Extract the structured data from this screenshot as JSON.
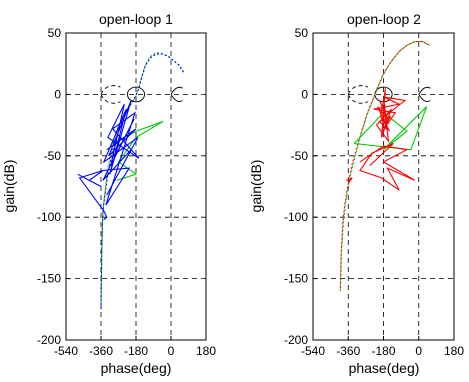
{
  "chart_data": [
    {
      "type": "line",
      "title": "open-loop 1",
      "xlabel": "phase(deg)",
      "ylabel": "gain(dB)",
      "xlim": [
        -540,
        180
      ],
      "ylim": [
        -200,
        50
      ],
      "xticks": [
        "-540",
        "-360",
        "-180",
        "0",
        "180"
      ],
      "yticks": [
        "50",
        "0",
        "-50",
        "-100",
        "-150",
        "-200"
      ],
      "grid": true,
      "series": [
        {
          "color": "#00cc00",
          "style": "dashed",
          "points": [
            [
              -360,
              -170
            ],
            [
              -355,
              -120
            ],
            [
              -350,
              -95
            ],
            [
              -340,
              -80
            ],
            [
              -325,
              -60
            ],
            [
              -300,
              -40
            ],
            [
              -270,
              -25
            ],
            [
              -240,
              -15
            ],
            [
              -210,
              -8
            ],
            [
              -185,
              -3
            ],
            [
              -165,
              5
            ],
            [
              -150,
              15
            ],
            [
              -130,
              25
            ],
            [
              -105,
              31
            ],
            [
              -75,
              34
            ],
            [
              -45,
              33
            ],
            [
              -15,
              31
            ],
            [
              10,
              28
            ],
            [
              40,
              24
            ],
            [
              65,
              18
            ]
          ]
        },
        {
          "color": "#0000ff",
          "style": "dashed",
          "points": [
            [
              -360,
              -175
            ],
            [
              -358,
              -150
            ],
            [
              -356,
              -125
            ],
            [
              -353,
              -108
            ],
            [
              -350,
              -97
            ],
            [
              -345,
              -88
            ],
            [
              -338,
              -80
            ],
            [
              -325,
              -65
            ],
            [
              -310,
              -52
            ],
            [
              -290,
              -40
            ],
            [
              -265,
              -28
            ],
            [
              -240,
              -18
            ],
            [
              -215,
              -10
            ],
            [
              -190,
              -4
            ],
            [
              -170,
              3
            ],
            [
              -150,
              14
            ],
            [
              -130,
              24
            ],
            [
              -105,
              30
            ],
            [
              -75,
              33
            ],
            [
              -45,
              33
            ],
            [
              -15,
              31
            ],
            [
              10,
              28
            ],
            [
              40,
              24
            ],
            [
              65,
              18
            ]
          ]
        },
        {
          "color": "#00cc00",
          "style": "solid",
          "points": [
            [
              -300,
              -40
            ],
            [
              -180,
              -30
            ],
            [
              -40,
              -22
            ],
            [
              -180,
              -35
            ],
            [
              -270,
              -55
            ],
            [
              -180,
              -65
            ],
            [
              -280,
              -70
            ]
          ]
        },
        {
          "color": "#0000ff",
          "style": "solid",
          "points": [
            [
              -330,
              -45
            ],
            [
              -180,
              -28
            ],
            [
              -320,
              -50
            ],
            [
              -205,
              -5
            ],
            [
              -315,
              -65
            ],
            [
              -230,
              -12
            ],
            [
              -345,
              -55
            ],
            [
              -170,
              -35
            ],
            [
              -330,
              -82
            ],
            [
              -205,
              -45
            ],
            [
              -350,
              -70
            ],
            [
              -190,
              -20
            ],
            [
              -310,
              -58
            ],
            [
              -240,
              -8
            ],
            [
              -325,
              -35
            ],
            [
              -165,
              -52
            ],
            [
              -300,
              -28
            ],
            [
              -185,
              -15
            ],
            [
              -335,
              -90
            ],
            [
              -215,
              -60
            ],
            [
              -355,
              -62
            ]
          ]
        },
        {
          "color": "#0000ff",
          "style": "solid",
          "points": [
            [
              -480,
              -65
            ],
            [
              -360,
              -75
            ],
            [
              -420,
              -70
            ],
            [
              -350,
              -62
            ],
            [
              -470,
              -68
            ],
            [
              -345,
              -95
            ],
            [
              -330,
              -100
            ],
            [
              -345,
              -102
            ]
          ]
        }
      ]
    },
    {
      "type": "line",
      "title": "open-loop 2",
      "xlabel": "phase(deg)",
      "ylabel": "gain(dB)",
      "xlim": [
        -540,
        180
      ],
      "ylim": [
        -200,
        50
      ],
      "xticks": [
        "-540",
        "-360",
        "-180",
        "0",
        "180"
      ],
      "yticks": [
        "50",
        "0",
        "-50",
        "-100",
        "-150",
        "-200"
      ],
      "grid": true,
      "series": [
        {
          "color": "#00cc00",
          "style": "dashed",
          "points": [
            [
              -400,
              -160
            ],
            [
              -395,
              -130
            ],
            [
              -385,
              -105
            ],
            [
              -375,
              -90
            ],
            [
              -360,
              -75
            ],
            [
              -340,
              -60
            ],
            [
              -315,
              -45
            ],
            [
              -290,
              -30
            ],
            [
              -260,
              -15
            ],
            [
              -235,
              -5
            ],
            [
              -210,
              5
            ],
            [
              -185,
              15
            ],
            [
              -160,
              22
            ],
            [
              -135,
              28
            ],
            [
              -100,
              35
            ],
            [
              -60,
              40
            ],
            [
              -20,
              43
            ],
            [
              20,
              43
            ],
            [
              55,
              40
            ]
          ]
        },
        {
          "color": "#ff0000",
          "style": "dashed",
          "points": [
            [
              -400,
              -158
            ],
            [
              -396,
              -128
            ],
            [
              -388,
              -104
            ],
            [
              -378,
              -90
            ],
            [
              -362,
              -74
            ],
            [
              -342,
              -58
            ],
            [
              -318,
              -44
            ],
            [
              -292,
              -30
            ],
            [
              -262,
              -15
            ],
            [
              -236,
              -5
            ],
            [
              -212,
              5
            ],
            [
              -186,
              15
            ],
            [
              -160,
              22
            ],
            [
              -135,
              28
            ],
            [
              -100,
              35
            ],
            [
              -60,
              40
            ],
            [
              -20,
              43
            ],
            [
              20,
              43
            ],
            [
              55,
              40
            ]
          ]
        },
        {
          "color": "#00cc00",
          "style": "solid",
          "points": [
            [
              -330,
              -40
            ],
            [
              -180,
              -15
            ],
            [
              -60,
              -30
            ],
            [
              -180,
              -45
            ],
            [
              40,
              -10
            ],
            [
              -40,
              -45
            ],
            [
              -330,
              -40
            ]
          ]
        },
        {
          "color": "#ff0000",
          "style": "solid",
          "points": [
            [
              -200,
              -5
            ],
            [
              -160,
              -20
            ],
            [
              -210,
              -10
            ],
            [
              -150,
              -30
            ],
            [
              -195,
              -18
            ],
            [
              -170,
              5
            ],
            [
              -190,
              -35
            ],
            [
              -140,
              -12
            ],
            [
              -215,
              -25
            ],
            [
              -155,
              -38
            ],
            [
              -175,
              -8
            ],
            [
              -165,
              -28
            ],
            [
              -200,
              -22
            ],
            [
              -145,
              -18
            ],
            [
              -185,
              -30
            ],
            [
              -120,
              -15
            ],
            [
              -230,
              -12
            ],
            [
              -100,
              -8
            ],
            [
              -180,
              -2
            ],
            [
              -70,
              -5
            ],
            [
              -190,
              -20
            ]
          ]
        },
        {
          "color": "#ff0000",
          "style": "solid",
          "points": [
            [
              -300,
              -55
            ],
            [
              -180,
              -42
            ],
            [
              -60,
              -45
            ],
            [
              -180,
              -55
            ],
            [
              -20,
              -70
            ],
            [
              -160,
              -60
            ],
            [
              -100,
              -78
            ],
            [
              -190,
              -68
            ],
            [
              -300,
              -62
            ],
            [
              -240,
              -48
            ],
            [
              -130,
              -40
            ],
            [
              -250,
              -58
            ]
          ]
        },
        {
          "color": "#ff0000",
          "style": "solid",
          "points": [
            [
              -370,
              -70
            ],
            [
              -340,
              -68
            ],
            [
              -360,
              -72
            ]
          ]
        }
      ]
    }
  ]
}
